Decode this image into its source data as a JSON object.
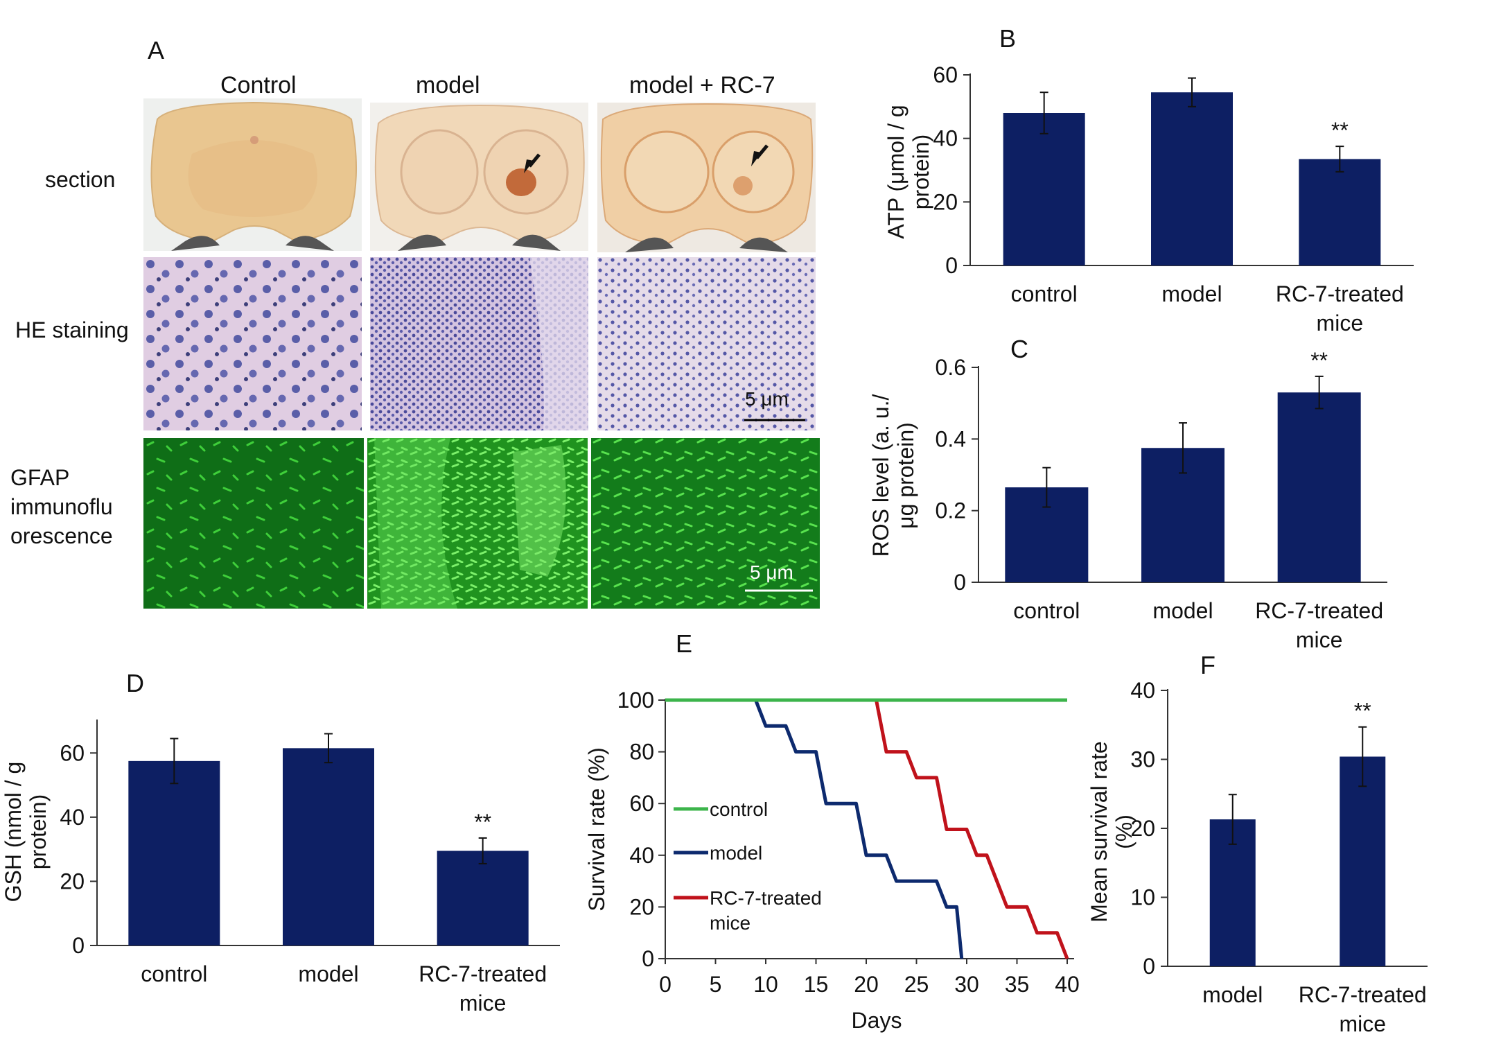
{
  "panelA": {
    "letter": "A",
    "columns": [
      "Control",
      "model",
      "model  + RC-7"
    ],
    "rows": {
      "section": "section",
      "he": "HE staining",
      "gfap": [
        "GFAP",
        "immunoflu",
        "orescence"
      ]
    },
    "scale_he": "5 μm",
    "scale_gfap": "5 μm"
  },
  "colors": {
    "bar": "#0d1f63",
    "control": "#3cb44b",
    "model": "#0d2a6e",
    "rc7": "#c0121b"
  },
  "chart_data": [
    {
      "id": "B",
      "type": "bar",
      "letter": "B",
      "categories": [
        "control",
        "model",
        "RC-7-treated mice"
      ],
      "values": [
        48,
        54.5,
        33.5
      ],
      "errors": [
        6.5,
        4.5,
        4
      ],
      "significance": [
        "",
        "",
        "**"
      ],
      "ylabel": "ATP (μmol / g protein)",
      "ylim": [
        0,
        60
      ],
      "yticks": [
        0,
        20,
        40,
        60
      ],
      "yticklabels": [
        "0",
        "20",
        "40",
        "60"
      ]
    },
    {
      "id": "C",
      "type": "bar",
      "letter": "C",
      "categories": [
        "control",
        "model",
        "RC-7-treated mice"
      ],
      "values": [
        0.265,
        0.375,
        0.53
      ],
      "errors": [
        0.055,
        0.07,
        0.045
      ],
      "significance": [
        "",
        "",
        "**"
      ],
      "ylabel": "ROS level (a. u./ μg protein)",
      "ylim": [
        0,
        0.6
      ],
      "yticks": [
        0,
        0.2,
        0.4,
        0.6
      ],
      "yticklabels": [
        "0",
        "0.2",
        "0.4",
        "0.6"
      ]
    },
    {
      "id": "D",
      "type": "bar",
      "letter": "D",
      "categories": [
        "control",
        "model",
        "RC-7-treated mice"
      ],
      "values": [
        57.5,
        61.5,
        29.5
      ],
      "errors": [
        7,
        4.5,
        4
      ],
      "significance": [
        "",
        "",
        "**"
      ],
      "ylabel": "GSH (nmol / g protein)",
      "ylim": [
        0,
        70
      ],
      "yticks": [
        0,
        20,
        40,
        60
      ],
      "yticklabels": [
        "0",
        "20",
        "40",
        "60"
      ]
    },
    {
      "id": "E",
      "type": "line",
      "letter": "E",
      "xlabel": "Days",
      "ylabel": "Survival rate (%)",
      "xlim": [
        0,
        40
      ],
      "ylim": [
        0,
        100
      ],
      "xticks": [
        "0",
        "5",
        "10",
        "15",
        "20",
        "25",
        "30",
        "35",
        "40"
      ],
      "yticks": [
        "0",
        "20",
        "40",
        "60",
        "80",
        "100"
      ],
      "series": [
        {
          "name": "control",
          "x": [
            0,
            40
          ],
          "y": [
            100,
            100
          ]
        },
        {
          "name": "model",
          "x": [
            0,
            9,
            10,
            12,
            13,
            15,
            16,
            19,
            20,
            22,
            23,
            27,
            28,
            29,
            29.5
          ],
          "y": [
            100,
            100,
            90,
            90,
            80,
            80,
            60,
            60,
            40,
            40,
            30,
            30,
            20,
            20,
            0
          ]
        },
        {
          "name": "RC-7-treated mice",
          "x": [
            0,
            21,
            22,
            24,
            25,
            27,
            28,
            30,
            31,
            32,
            34,
            36,
            37,
            39,
            40
          ],
          "y": [
            100,
            100,
            80,
            80,
            70,
            70,
            50,
            50,
            40,
            40,
            20,
            20,
            10,
            10,
            0
          ]
        }
      ],
      "legend": [
        "control",
        "model",
        "RC-7-treated mice"
      ]
    },
    {
      "id": "F",
      "type": "bar",
      "letter": "F",
      "categories": [
        "model",
        "RC-7-treated mice"
      ],
      "values": [
        21.3,
        30.4
      ],
      "errors": [
        3.6,
        4.3
      ],
      "significance": [
        "",
        "**"
      ],
      "ylabel": "Mean survival rate (%)",
      "ylim": [
        0,
        40
      ],
      "yticks": [
        0,
        10,
        20,
        30,
        40
      ],
      "yticklabels": [
        "0",
        "10",
        "20",
        "30",
        "40"
      ]
    }
  ]
}
